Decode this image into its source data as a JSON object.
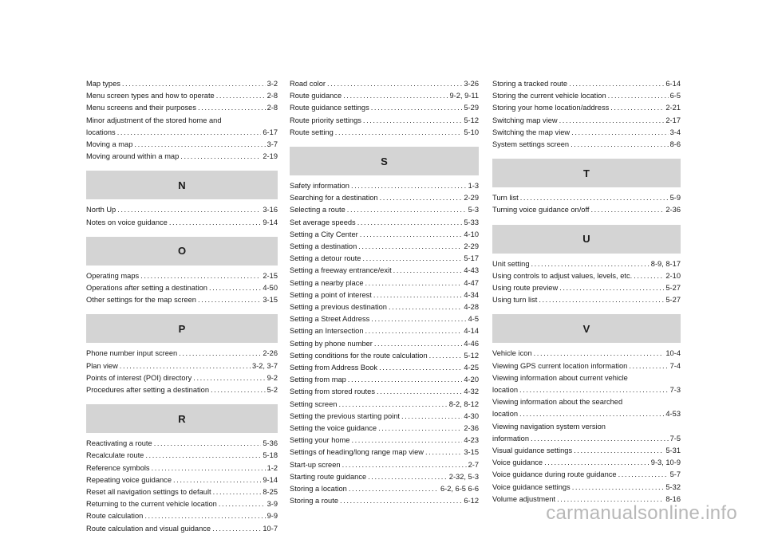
{
  "watermark": "carmanualsonline.info",
  "columns": [
    [
      {
        "t": "Map types",
        "p": "3-2"
      },
      {
        "t": "Menu screen types and how to operate",
        "p": "2-8"
      },
      {
        "t": "Menu screens and their purposes",
        "p": "2-8"
      },
      {
        "t": "Minor adjustment of the stored home and",
        "t2": "locations",
        "p": "6-17"
      },
      {
        "t": "Moving a map",
        "p": "3-7"
      },
      {
        "t": "Moving around within a map",
        "p": "2-19"
      },
      {
        "h": "N"
      },
      {
        "t": "North Up",
        "p": "3-16"
      },
      {
        "t": "Notes on voice guidance",
        "p": "9-14"
      },
      {
        "h": "O"
      },
      {
        "t": "Operating maps",
        "p": "2-15"
      },
      {
        "t": "Operations after setting a destination",
        "p": "4-50"
      },
      {
        "t": "Other settings for the map screen",
        "p": "3-15"
      },
      {
        "h": "P"
      },
      {
        "t": "Phone number input screen",
        "p": "2-26"
      },
      {
        "t": "Plan view",
        "p": "3-2, 3-7"
      },
      {
        "t": "Points of interest (POI) directory",
        "p": "9-2"
      },
      {
        "t": "Procedures after setting a destination",
        "p": "5-2"
      },
      {
        "h": "R"
      },
      {
        "t": "Reactivating a route",
        "p": "5-36"
      },
      {
        "t": "Recalculate route",
        "p": "5-18"
      },
      {
        "t": "Reference symbols",
        "p": "1-2"
      },
      {
        "t": "Repeating voice guidance",
        "p": "9-14"
      },
      {
        "t": "Reset all navigation settings to default",
        "p": "8-25"
      },
      {
        "t": "Returning to the current vehicle location",
        "p": "3-9"
      },
      {
        "t": "Route calculation",
        "p": "9-9"
      },
      {
        "t": "Route calculation and visual guidance",
        "p": "10-7"
      }
    ],
    [
      {
        "t": "Road color",
        "p": "3-26"
      },
      {
        "t": "Route guidance",
        "p": "9-2, 9-11"
      },
      {
        "t": "Route guidance settings",
        "p": "5-29"
      },
      {
        "t": "Route priority settings",
        "p": "5-12"
      },
      {
        "t": "Route setting",
        "p": "5-10"
      },
      {
        "h": "S"
      },
      {
        "t": "Safety information",
        "p": "1-3"
      },
      {
        "t": "Searching for a destination",
        "p": "2-29"
      },
      {
        "t": "Selecting a route",
        "p": "5-3"
      },
      {
        "t": "Set average speeds",
        "p": "5-33"
      },
      {
        "t": "Setting a City Center",
        "p": "4-10"
      },
      {
        "t": "Setting a destination",
        "p": "2-29"
      },
      {
        "t": "Setting a detour route",
        "p": "5-17"
      },
      {
        "t": "Setting a freeway entrance/exit",
        "p": "4-43"
      },
      {
        "t": "Setting a nearby place",
        "p": "4-47"
      },
      {
        "t": "Setting a point of interest",
        "p": "4-34"
      },
      {
        "t": "Setting a previous destination",
        "p": "4-28"
      },
      {
        "t": "Setting a Street Address",
        "p": "4-5"
      },
      {
        "t": "Setting an Intersection",
        "p": "4-14"
      },
      {
        "t": "Setting by phone number",
        "p": "4-46"
      },
      {
        "t": "Setting conditions for the route calculation",
        "p": "5-12"
      },
      {
        "t": "Setting from Address Book",
        "p": "4-25"
      },
      {
        "t": "Setting from map",
        "p": "4-20"
      },
      {
        "t": "Setting from stored routes",
        "p": "4-32"
      },
      {
        "t": "Setting screen",
        "p": "8-2, 8-12"
      },
      {
        "t": "Setting the previous starting point",
        "p": "4-30"
      },
      {
        "t": "Setting the voice guidance",
        "p": "2-36"
      },
      {
        "t": "Setting your home",
        "p": "4-23"
      },
      {
        "t": "Settings of heading/long range map view",
        "p": "3-15"
      },
      {
        "t": "Start-up screen",
        "p": "2-7"
      },
      {
        "t": "Starting route guidance",
        "p": "2-32, 5-3"
      },
      {
        "t": "Storing a location",
        "p": "6-2, 6-5 6-6"
      },
      {
        "t": "Storing a route",
        "p": "6-12"
      }
    ],
    [
      {
        "t": "Storing a tracked route",
        "p": "6-14"
      },
      {
        "t": "Storing the current vehicle location",
        "p": "6-5"
      },
      {
        "t": "Storing your home location/address",
        "p": "2-21"
      },
      {
        "t": "Switching map view",
        "p": "2-17"
      },
      {
        "t": "Switching the map view",
        "p": "3-4"
      },
      {
        "t": "System settings screen",
        "p": "8-6"
      },
      {
        "h": "T"
      },
      {
        "t": "Turn list",
        "p": "5-9"
      },
      {
        "t": "Turning voice guidance on/off",
        "p": "2-36"
      },
      {
        "h": "U"
      },
      {
        "t": "Unit setting",
        "p": "8-9, 8-17"
      },
      {
        "t": "Using controls to adjust values, levels, etc.",
        "p": "2-10"
      },
      {
        "t": "Using route preview",
        "p": "5-27"
      },
      {
        "t": "Using turn list",
        "p": "5-27"
      },
      {
        "h": "V"
      },
      {
        "t": "Vehicle icon",
        "p": "10-4"
      },
      {
        "t": "Viewing GPS current location information",
        "p": "7-4"
      },
      {
        "t": "Viewing information about current vehicle",
        "t2": "location",
        "p": "7-3"
      },
      {
        "t": "Viewing information about the searched",
        "t2": "location",
        "p": "4-53"
      },
      {
        "t": "Viewing navigation system version",
        "t2": "information",
        "p": "7-5"
      },
      {
        "t": "Visual guidance settings",
        "p": "5-31"
      },
      {
        "t": "Voice guidance",
        "p": "9-3, 10-9"
      },
      {
        "t": "Voice guidance during route guidance",
        "p": "5-7"
      },
      {
        "t": "Voice guidance settings",
        "p": "5-32"
      },
      {
        "t": "Volume adjustment",
        "p": "8-16"
      }
    ]
  ]
}
